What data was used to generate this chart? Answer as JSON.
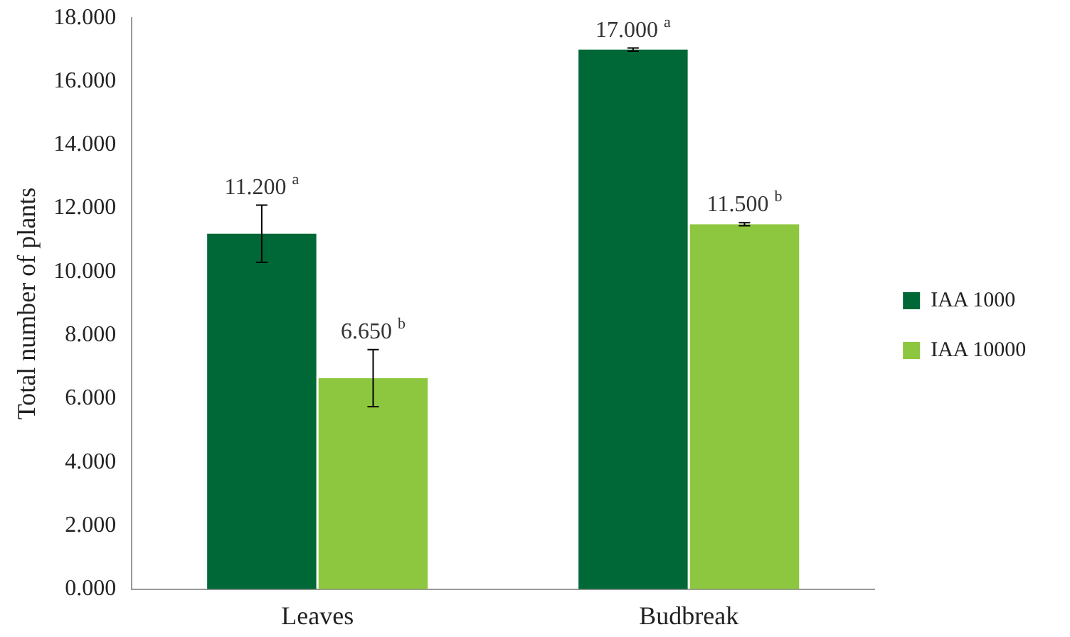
{
  "chart_data": {
    "type": "bar",
    "ylabel": "Total number of plants",
    "categories": [
      "Leaves",
      "Budbreak"
    ],
    "series": [
      {
        "name": "IAA 1000",
        "color": "#006837",
        "values": [
          11.2,
          17.0
        ],
        "errors": [
          0.9,
          0.05
        ],
        "value_labels": [
          "11.200 $^{a}$",
          "17.000 $^{a}$"
        ]
      },
      {
        "name": "IAA 10000",
        "color": "#8dc63f",
        "values": [
          6.65,
          11.5
        ],
        "errors": [
          0.9,
          0.05
        ],
        "value_labels": [
          "6.650 $^{b}$",
          "11.500 $^{b}$"
        ]
      }
    ],
    "ylim": [
      0,
      18
    ],
    "yticks": [
      {
        "value": 0,
        "label": "0.000"
      },
      {
        "value": 2,
        "label": "2.000"
      },
      {
        "value": 4,
        "label": "4.000"
      },
      {
        "value": 6,
        "label": "6.000"
      },
      {
        "value": 8,
        "label": "8.000"
      },
      {
        "value": 10,
        "label": "10.000"
      },
      {
        "value": 12,
        "label": "12.000"
      },
      {
        "value": 14,
        "label": "14.000"
      },
      {
        "value": 16,
        "label": "16.000"
      },
      {
        "value": 18,
        "label": "18.000"
      }
    ],
    "grid": false,
    "legend": "right"
  }
}
